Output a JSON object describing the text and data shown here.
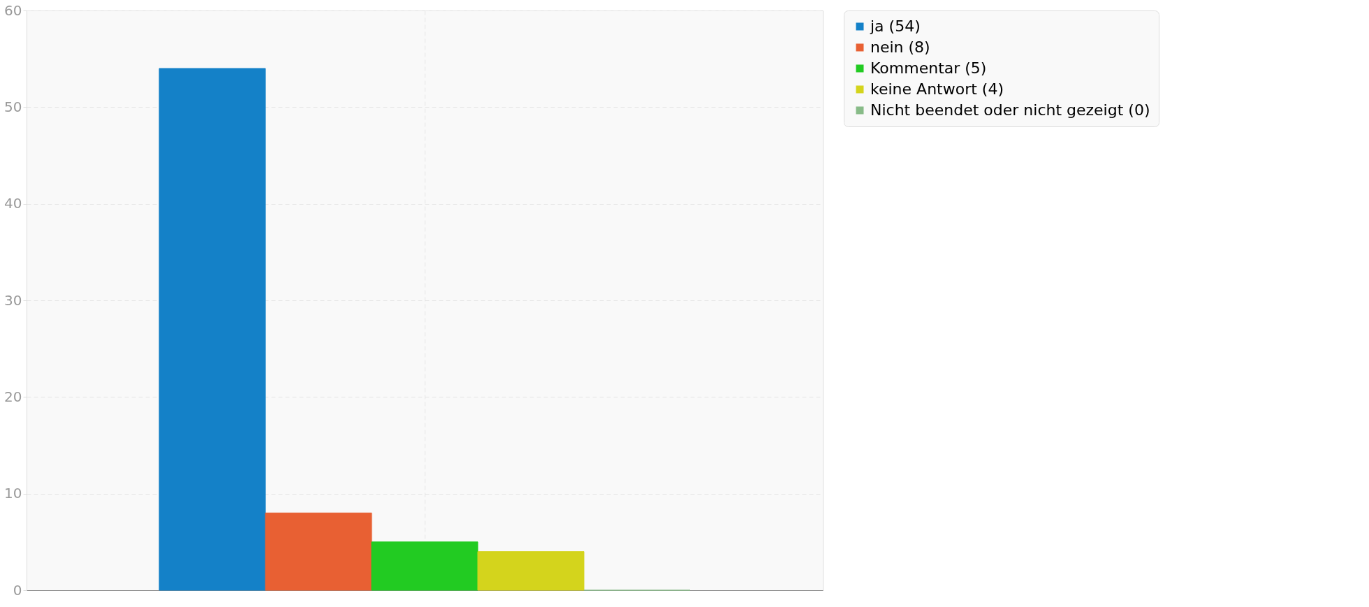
{
  "chart_data": {
    "type": "bar",
    "categories": [
      null
    ],
    "series": [
      {
        "name": "ja (54)",
        "color": "#1481c8",
        "values": [
          54
        ]
      },
      {
        "name": "nein (8)",
        "color": "#e86033",
        "values": [
          8
        ]
      },
      {
        "name": "Kommentar (5)",
        "color": "#22cb22",
        "values": [
          5
        ]
      },
      {
        "name": "keine Antwort (4)",
        "color": "#d4d41c",
        "values": [
          4
        ]
      },
      {
        "name": "Nicht beendet oder nicht gezeigt (0)",
        "color": "#88bb88",
        "values": [
          0
        ]
      }
    ],
    "ylim": [
      0,
      60
    ],
    "yticks": [
      0,
      10,
      20,
      30,
      40,
      50,
      60
    ],
    "grid": true,
    "legend": "top right",
    "tick_labels": "y"
  }
}
